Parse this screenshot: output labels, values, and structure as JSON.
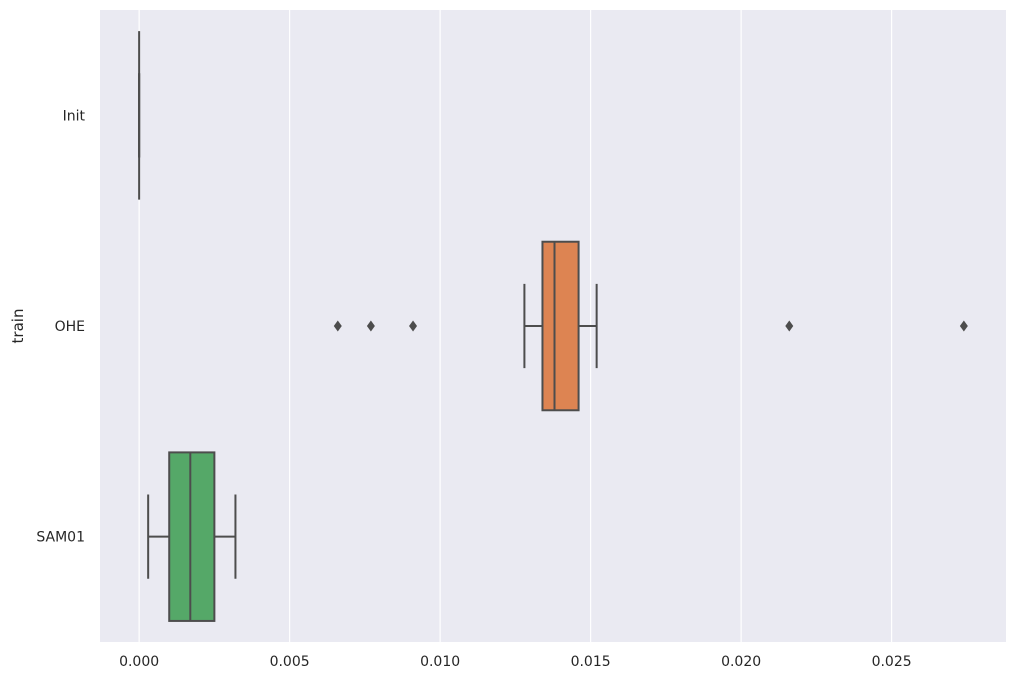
{
  "chart_data": {
    "type": "box",
    "orientation": "horizontal",
    "title": "",
    "xlabel": "",
    "ylabel": "train",
    "xlim": [
      -0.0013,
      0.0288
    ],
    "x_ticks": [
      0.0,
      0.005,
      0.01,
      0.015,
      0.02,
      0.025
    ],
    "x_tick_labels": [
      "0.000",
      "0.005",
      "0.010",
      "0.015",
      "0.020",
      "0.025"
    ],
    "categories": [
      "Init",
      "OHE",
      "SAM01"
    ],
    "background_color": "#eaeaf2",
    "grid": true,
    "grid_color": "#ffffff",
    "line_color": "#4d4d4d",
    "boxes": [
      {
        "category": "Init",
        "whisker_low": 0.0,
        "q1": 0.0,
        "median": 0.0,
        "q3": 0.0,
        "whisker_high": 0.0,
        "outliers": [],
        "color": "#4c72b0"
      },
      {
        "category": "OHE",
        "whisker_low": 0.0128,
        "q1": 0.0134,
        "median": 0.0138,
        "q3": 0.0146,
        "whisker_high": 0.0152,
        "outliers": [
          0.0066,
          0.0077,
          0.0091,
          0.0216,
          0.0274
        ],
        "color": "#dd8452"
      },
      {
        "category": "SAM01",
        "whisker_low": 0.0003,
        "q1": 0.001,
        "median": 0.0017,
        "q3": 0.0025,
        "whisker_high": 0.0032,
        "outliers": [],
        "color": "#55a868"
      }
    ]
  }
}
